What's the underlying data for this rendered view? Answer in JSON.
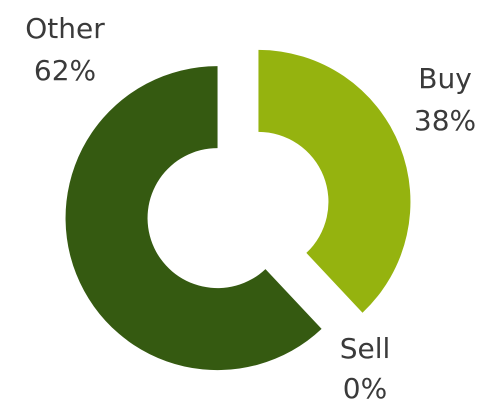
{
  "chart_data": {
    "type": "donut",
    "categories": [
      "Buy",
      "Sell",
      "Other"
    ],
    "values": [
      38,
      0,
      62
    ],
    "value_labels": [
      "38%",
      "0%",
      "62%"
    ],
    "colors": [
      "#95b30f",
      "#6d8a1a",
      "#355a11"
    ]
  }
}
